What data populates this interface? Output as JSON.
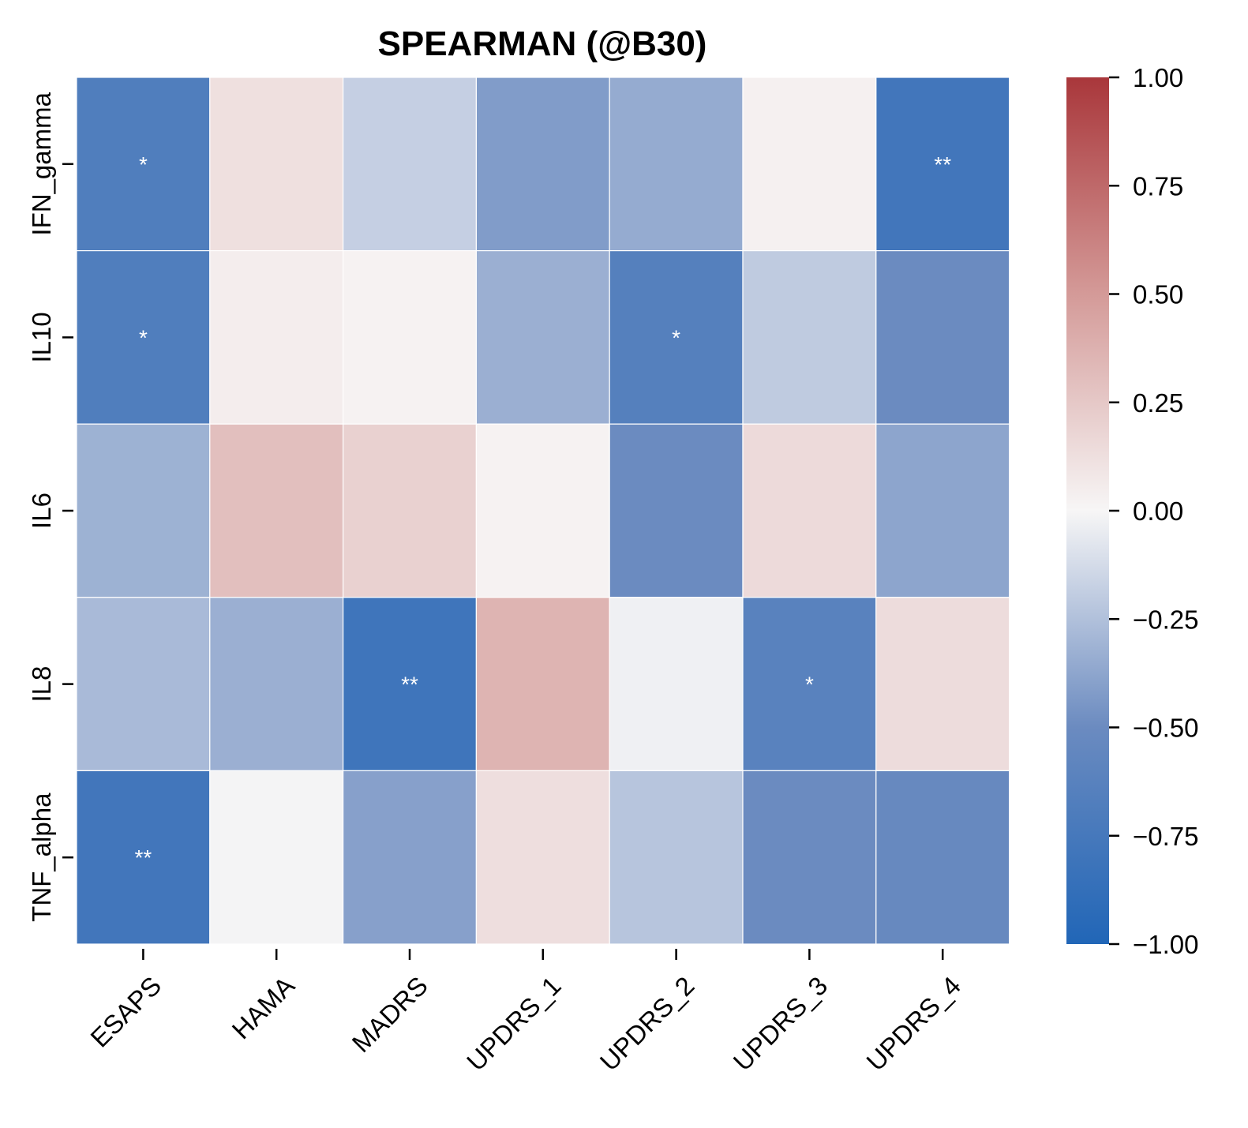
{
  "chart_data": {
    "type": "heatmap",
    "title": "SPEARMAN (@B30)",
    "xlabel": "",
    "ylabel": "",
    "columns": [
      "ESAPS",
      "HAMA",
      "MADRS",
      "UPDRS_1",
      "UPDRS_2",
      "UPDRS_3",
      "UPDRS_4"
    ],
    "rows": [
      "IFN_gamma",
      "IL10",
      "IL6",
      "IL8",
      "TNF_alpha"
    ],
    "values": [
      [
        -0.68,
        0.12,
        -0.18,
        -0.42,
        -0.35,
        0.03,
        -0.78
      ],
      [
        -0.68,
        0.05,
        0.02,
        -0.33,
        -0.65,
        -0.2,
        -0.5
      ],
      [
        -0.32,
        0.3,
        0.2,
        0.02,
        -0.5,
        0.15,
        -0.38
      ],
      [
        -0.28,
        -0.33,
        -0.8,
        0.36,
        -0.03,
        -0.62,
        0.14
      ],
      [
        -0.78,
        -0.01,
        -0.4,
        0.13,
        -0.23,
        -0.5,
        -0.53
      ]
    ],
    "annotations": [
      [
        "*",
        "",
        "",
        "",
        "",
        "",
        "**"
      ],
      [
        "*",
        "",
        "",
        "",
        "*",
        "",
        ""
      ],
      [
        "",
        "",
        "",
        "",
        "",
        "",
        ""
      ],
      [
        "",
        "",
        "**",
        "",
        "",
        "*",
        ""
      ],
      [
        "**",
        "",
        "",
        "",
        "",
        "",
        ""
      ]
    ],
    "colorbar": {
      "range": [
        -1.0,
        1.0
      ],
      "ticks": [
        "1.00",
        "0.75",
        "0.50",
        "0.25",
        "0.00",
        "−0.25",
        "−0.50",
        "−0.75",
        "−1.00"
      ],
      "tick_values": [
        1.0,
        0.75,
        0.5,
        0.25,
        0.0,
        -0.25,
        -0.5,
        -0.75,
        -1.0
      ],
      "colormap": "vlag",
      "low_color": "#2166b7",
      "mid_color": "#f7f6f6",
      "high_color": "#a9373b"
    }
  }
}
